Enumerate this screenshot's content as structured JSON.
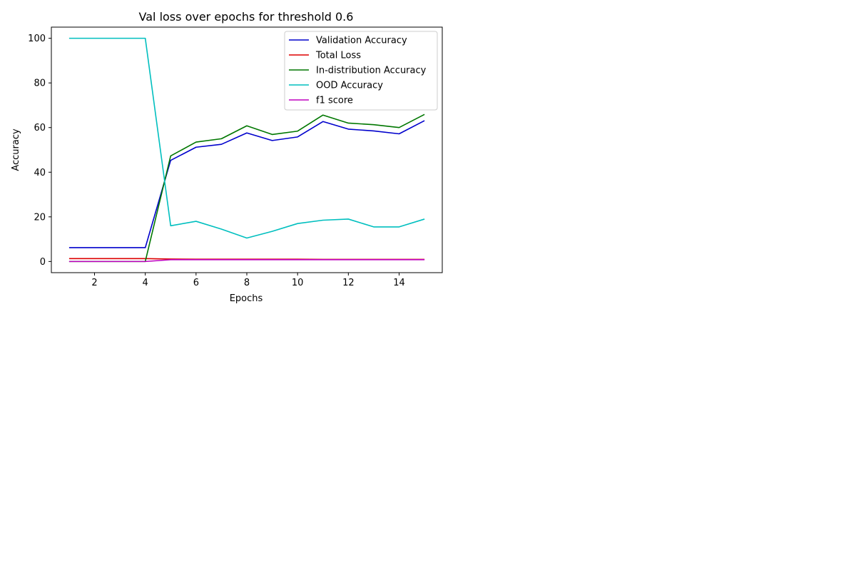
{
  "chart_data": {
    "type": "line",
    "title": "Val loss over epochs for threshold 0.6",
    "xlabel": "Epochs",
    "ylabel": "Accuracy",
    "xlim": [
      0.3,
      15.7
    ],
    "ylim": [
      -5,
      105
    ],
    "xticks": [
      2,
      4,
      6,
      8,
      10,
      12,
      14
    ],
    "yticks": [
      0,
      20,
      40,
      60,
      80,
      100
    ],
    "legend_position": "top-right",
    "grid": false,
    "x": [
      1,
      2,
      3,
      4,
      5,
      6,
      7,
      8,
      9,
      10,
      11,
      12,
      13,
      14,
      15
    ],
    "series": [
      {
        "name": "Validation Accuracy",
        "color": "#0000cc",
        "values": [
          6.2,
          6.2,
          6.2,
          6.2,
          45.3,
          51.2,
          52.5,
          57.6,
          54.2,
          55.8,
          62.7,
          59.3,
          58.5,
          57.2,
          63.1
        ]
      },
      {
        "name": "Total Loss",
        "color": "#dd0000",
        "values": [
          1.3,
          1.3,
          1.3,
          1.3,
          1.1,
          1.0,
          1.0,
          1.0,
          1.0,
          1.0,
          0.95,
          0.95,
          0.95,
          0.95,
          0.95
        ]
      },
      {
        "name": "In-distribution Accuracy",
        "color": "#007700",
        "values": [
          0,
          0,
          0,
          0,
          47.3,
          53.5,
          55.0,
          60.8,
          56.9,
          58.4,
          65.6,
          62.0,
          61.3,
          60.0,
          65.9
        ]
      },
      {
        "name": "OOD Accuracy",
        "color": "#00bfbf",
        "values": [
          100,
          100,
          100,
          100,
          16.0,
          18.0,
          14.5,
          10.5,
          13.5,
          17.0,
          18.5,
          19.0,
          15.5,
          15.5,
          19.0
        ]
      },
      {
        "name": "f1 score",
        "color": "#bf00bf",
        "values": [
          0,
          0,
          0,
          0,
          0.8,
          0.8,
          0.8,
          0.8,
          0.8,
          0.8,
          0.8,
          0.8,
          0.8,
          0.8,
          0.8
        ]
      }
    ]
  }
}
